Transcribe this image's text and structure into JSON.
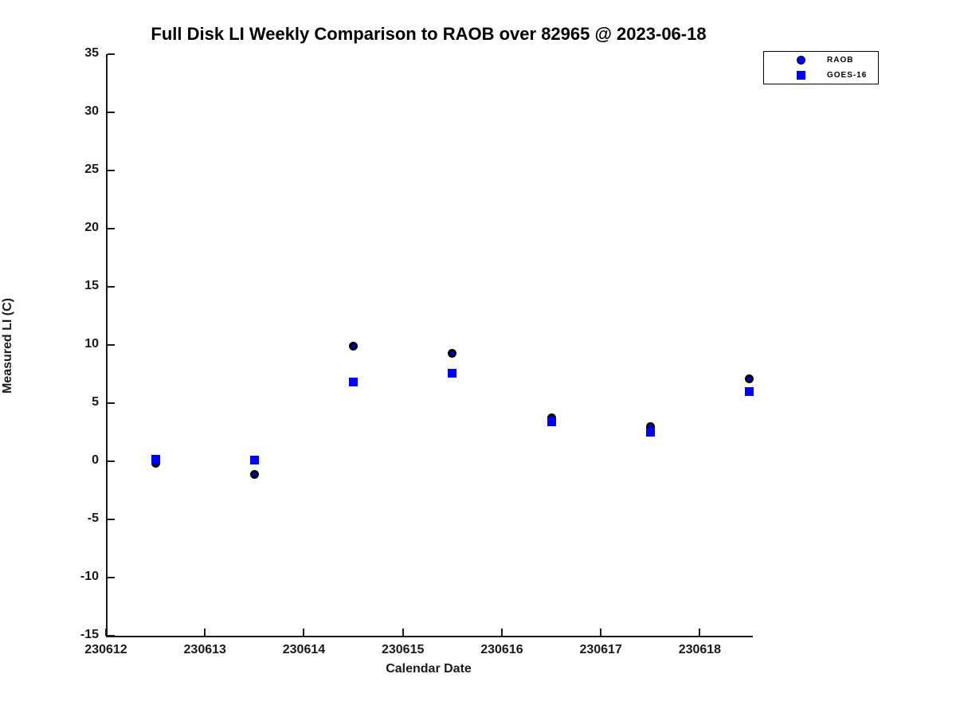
{
  "figure": {
    "title": "Full Disk LI Weekly Comparison to RAOB over 82965 @ 2023-06-18"
  },
  "chart_data": {
    "type": "scatter",
    "title": "Full Disk LI Weekly Comparison to RAOB over 82965 @ 2023-06-18",
    "xlabel": "Calendar Date",
    "ylabel": "Measured LI (C)",
    "xlim": [
      230612,
      230618.52
    ],
    "ylim": [
      -15,
      35
    ],
    "xticks": [
      230612,
      230613,
      230614,
      230615,
      230616,
      230617,
      230618
    ],
    "yticks": [
      35,
      30,
      25,
      20,
      15,
      10,
      5,
      0,
      -5,
      -10,
      -15
    ],
    "grid": false,
    "legend_position": "top-right",
    "x": [
      230612.5,
      230613.5,
      230614.5,
      230615.5,
      230616.5,
      230617.5,
      230618.5
    ],
    "series": [
      {
        "name": "RAOB",
        "marker": "circle",
        "face_color": "#0000dd",
        "edge_color": "#000000",
        "values": [
          -0.2,
          -1.1,
          9.9,
          9.3,
          3.7,
          3.0,
          7.1
        ]
      },
      {
        "name": "GOES-16",
        "marker": "square",
        "face_color": "#0000ff",
        "edge_color": "#0000ff",
        "values": [
          0.2,
          0.1,
          6.8,
          7.6,
          3.4,
          2.5,
          6.0
        ]
      }
    ]
  }
}
